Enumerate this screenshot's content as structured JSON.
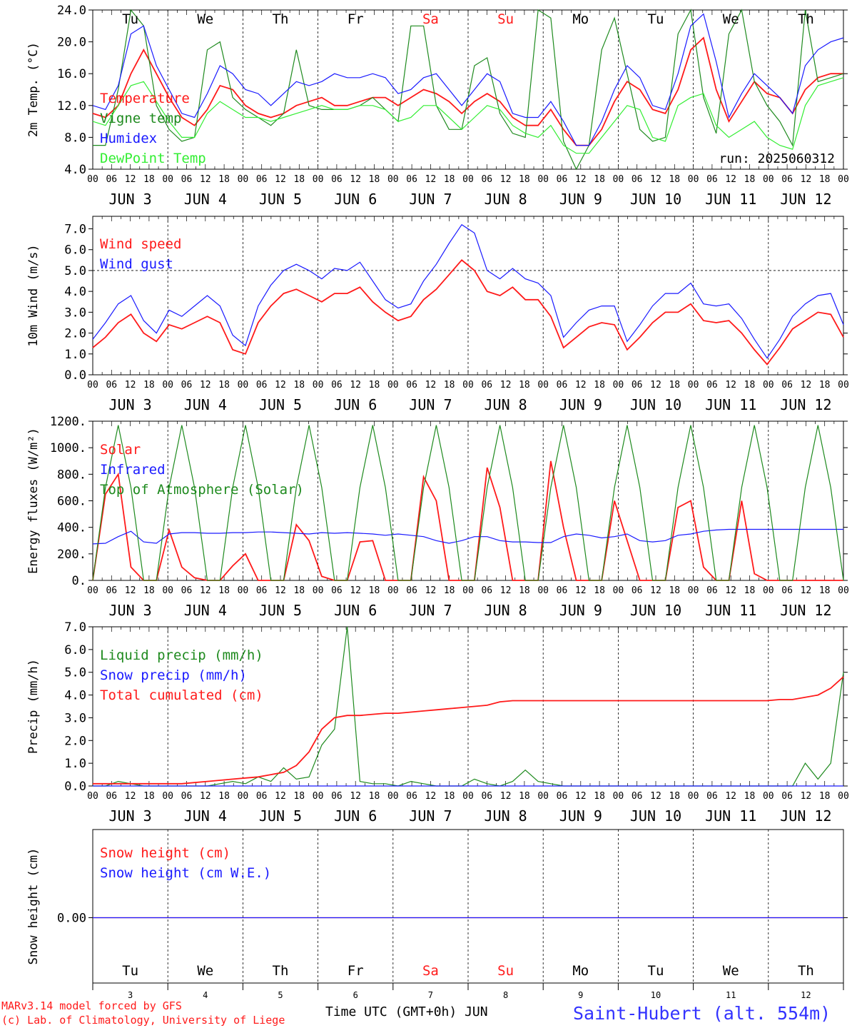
{
  "colors": {
    "red": "#ff1a1a",
    "darkgreen": "#1e8a1e",
    "blue": "#1a1aff",
    "lightgreen": "#33ee33",
    "black": "#000000",
    "footer_blue": "#3333ff"
  },
  "hour_ticks": [
    "00",
    "06",
    "12",
    "18"
  ],
  "date_labels": [
    "JUN  3",
    "JUN  4",
    "JUN  5",
    "JUN  6",
    "JUN  7",
    "JUN  8",
    "JUN  9",
    "JUN 10",
    "JUN 11",
    "JUN 12"
  ],
  "day_names": [
    "Tu",
    "We",
    "Th",
    "Fr",
    "Sa",
    "Su",
    "Mo",
    "Tu",
    "We",
    "Th"
  ],
  "day_colors": [
    "black",
    "black",
    "black",
    "black",
    "red",
    "red",
    "black",
    "black",
    "black",
    "black"
  ],
  "day_numbers": [
    "3",
    "4",
    "5",
    "6",
    "7",
    "8",
    "9",
    "10",
    "11",
    "12"
  ],
  "footer": {
    "model_line1": "MARv3.14 model forced by GFS",
    "model_line2": "(c) Lab. of Climatology, University of Liege",
    "time_axis": "Time UTC (GMT+0h) JUN",
    "station": "Saint-Hubert (alt. 554m)"
  },
  "chart_data": [
    {
      "type": "line",
      "ylabel": "2m Temp. (°C)",
      "ylim": [
        4,
        24
      ],
      "yticks": [
        "4.0",
        "8.0",
        "12.0",
        "16.0",
        "20.0",
        "24.0"
      ],
      "ytick_values": [
        4,
        8,
        12,
        16,
        20,
        24
      ],
      "run_label": "run: 2025060312",
      "legend_placement": "top-left",
      "x_hours_step": 6,
      "series": [
        {
          "name": "Temperature",
          "color": "red",
          "values": [
            11.0,
            10.5,
            12.0,
            16.0,
            19.0,
            16.0,
            13.0,
            10.5,
            9.5,
            11.5,
            14.5,
            14.0,
            12.0,
            11.0,
            10.5,
            11.0,
            12.0,
            12.5,
            13.0,
            12.0,
            12.0,
            12.5,
            13.0,
            13.0,
            12.0,
            13.0,
            14.0,
            13.5,
            12.5,
            11.0,
            12.5,
            13.5,
            12.5,
            10.5,
            9.5,
            9.5,
            11.5,
            9.0,
            7.0,
            7.0,
            9.0,
            12.5,
            15.0,
            14.0,
            11.5,
            11.0,
            14.0,
            19.0,
            20.5,
            14.0,
            10.0,
            12.5,
            15.0,
            13.5,
            13.0,
            11.0,
            14.0,
            15.5,
            16.0,
            16.0
          ]
        },
        {
          "name": "Vigne temp",
          "color": "darkgreen",
          "values": [
            7.0,
            7.0,
            14.0,
            24.0,
            22.0,
            12.0,
            9.0,
            7.5,
            8.0,
            19.0,
            20.0,
            13.0,
            11.5,
            10.5,
            9.5,
            11.0,
            19.0,
            12.0,
            11.5,
            11.5,
            11.5,
            12.0,
            13.0,
            11.5,
            10.0,
            22.0,
            22.0,
            12.0,
            9.0,
            9.0,
            17.0,
            18.0,
            11.0,
            8.5,
            8.0,
            24.0,
            23.0,
            7.5,
            4.0,
            7.0,
            19.0,
            23.0,
            16.0,
            9.0,
            7.5,
            8.0,
            21.0,
            24.0,
            13.0,
            8.5,
            21.0,
            24.0,
            15.0,
            12.0,
            10.0,
            7.0,
            24.0,
            15.0,
            15.5,
            16.0
          ]
        },
        {
          "name": "Humidex",
          "color": "blue",
          "values": [
            12.0,
            11.5,
            14.5,
            21.0,
            22.0,
            17.0,
            14.0,
            11.0,
            10.5,
            13.5,
            17.0,
            16.0,
            14.0,
            13.5,
            12.0,
            13.5,
            15.0,
            14.5,
            15.0,
            16.0,
            15.5,
            15.5,
            16.0,
            15.5,
            13.5,
            14.0,
            15.5,
            16.0,
            14.0,
            12.0,
            14.0,
            16.0,
            15.0,
            11.0,
            10.5,
            10.5,
            12.5,
            10.0,
            7.0,
            7.0,
            10.0,
            14.0,
            17.0,
            15.5,
            12.0,
            11.5,
            16.0,
            22.0,
            23.5,
            17.5,
            10.5,
            13.5,
            16.0,
            14.5,
            13.0,
            11.0,
            17.0,
            19.0,
            20.0,
            20.5
          ]
        },
        {
          "name": "DewPoint Temp",
          "color": "lightgreen",
          "values": [
            10.0,
            9.5,
            12.0,
            14.5,
            15.0,
            12.5,
            10.0,
            8.0,
            8.0,
            11.0,
            12.5,
            11.5,
            10.5,
            10.5,
            10.0,
            10.5,
            11.0,
            11.5,
            12.0,
            11.5,
            11.5,
            12.0,
            12.0,
            11.5,
            10.0,
            10.5,
            12.0,
            12.0,
            10.5,
            9.0,
            10.5,
            12.0,
            11.5,
            9.5,
            8.5,
            8.0,
            9.5,
            7.0,
            6.0,
            6.0,
            8.0,
            10.0,
            12.0,
            11.5,
            8.0,
            7.5,
            12.0,
            13.0,
            13.5,
            9.5,
            8.0,
            9.0,
            10.0,
            8.0,
            7.0,
            6.5,
            12.0,
            14.5,
            15.0,
            15.5
          ]
        }
      ]
    },
    {
      "type": "line",
      "ylabel": "10m Wind (m/s)",
      "ylim": [
        0,
        7.6
      ],
      "yticks": [
        "0.0",
        "1.0",
        "2.0",
        "3.0",
        "4.0",
        "5.0",
        "6.0",
        "7.0"
      ],
      "ytick_values": [
        0,
        1,
        2,
        3,
        4,
        5,
        6,
        7
      ],
      "reference_line": 5.0,
      "legend_placement": "top-left",
      "x_hours_step": 6,
      "series": [
        {
          "name": "Wind speed",
          "color": "red",
          "values": [
            1.3,
            1.8,
            2.5,
            2.9,
            2.0,
            1.6,
            2.4,
            2.2,
            2.5,
            2.8,
            2.5,
            1.2,
            1.0,
            2.5,
            3.3,
            3.9,
            4.1,
            3.8,
            3.5,
            3.9,
            3.9,
            4.2,
            3.5,
            3.0,
            2.6,
            2.8,
            3.6,
            4.1,
            4.8,
            5.5,
            5.0,
            4.0,
            3.8,
            4.2,
            3.6,
            3.6,
            2.8,
            1.3,
            1.8,
            2.3,
            2.5,
            2.4,
            1.2,
            1.8,
            2.5,
            3.0,
            3.0,
            3.4,
            2.6,
            2.5,
            2.6,
            2.0,
            1.2,
            0.5,
            1.3,
            2.2,
            2.6,
            3.0,
            2.9,
            1.8
          ]
        },
        {
          "name": "Wind gust",
          "color": "blue",
          "values": [
            1.7,
            2.5,
            3.4,
            3.8,
            2.6,
            2.0,
            3.1,
            2.8,
            3.3,
            3.8,
            3.3,
            1.9,
            1.4,
            3.3,
            4.3,
            5.0,
            5.3,
            5.0,
            4.6,
            5.1,
            5.0,
            5.4,
            4.5,
            3.6,
            3.2,
            3.4,
            4.5,
            5.3,
            6.3,
            7.2,
            6.8,
            5.0,
            4.6,
            5.1,
            4.6,
            4.4,
            3.8,
            1.8,
            2.5,
            3.1,
            3.3,
            3.3,
            1.6,
            2.4,
            3.3,
            3.9,
            3.9,
            4.4,
            3.4,
            3.3,
            3.4,
            2.7,
            1.7,
            0.8,
            1.7,
            2.8,
            3.4,
            3.8,
            3.9,
            2.4
          ]
        }
      ]
    },
    {
      "type": "line",
      "ylabel": "Energy fluxes (W/m²)",
      "ylim": [
        0,
        1200
      ],
      "yticks": [
        "0.",
        "200.",
        "400.",
        "600.",
        "800.",
        "1000.",
        "1200."
      ],
      "ytick_values": [
        0,
        200,
        400,
        600,
        800,
        1000,
        1200
      ],
      "legend_placement": "top-left",
      "x_hours_step": 6,
      "series": [
        {
          "name": "Solar",
          "color": "red",
          "values": [
            0,
            650,
            800,
            100,
            0,
            0,
            380,
            100,
            20,
            0,
            0,
            110,
            200,
            0,
            0,
            0,
            420,
            300,
            30,
            0,
            0,
            290,
            300,
            0,
            0,
            0,
            780,
            600,
            0,
            0,
            0,
            850,
            550,
            0,
            0,
            0,
            900,
            400,
            0,
            0,
            0,
            600,
            300,
            0,
            0,
            0,
            550,
            600,
            100,
            0,
            0,
            600,
            50,
            0,
            0,
            0,
            0,
            0,
            0,
            0
          ]
        },
        {
          "name": "Infrared",
          "color": "blue",
          "values": [
            275,
            280,
            330,
            370,
            290,
            280,
            350,
            360,
            360,
            355,
            355,
            360,
            360,
            365,
            365,
            360,
            355,
            350,
            360,
            355,
            360,
            355,
            350,
            340,
            350,
            340,
            330,
            300,
            280,
            300,
            330,
            330,
            300,
            290,
            290,
            285,
            285,
            330,
            350,
            340,
            320,
            330,
            350,
            300,
            290,
            300,
            340,
            350,
            370,
            380,
            385,
            385,
            385,
            385,
            385,
            385,
            385,
            385,
            385,
            385
          ]
        },
        {
          "name": "Top of Atmosphere (Solar)",
          "color": "darkgreen",
          "values": [
            0,
            700,
            1170,
            700,
            0,
            0,
            700,
            1170,
            700,
            0,
            0,
            700,
            1170,
            700,
            0,
            0,
            700,
            1170,
            700,
            0,
            0,
            700,
            1170,
            700,
            0,
            0,
            700,
            1170,
            700,
            0,
            0,
            700,
            1170,
            700,
            0,
            0,
            700,
            1170,
            700,
            0,
            0,
            700,
            1170,
            700,
            0,
            0,
            700,
            1170,
            700,
            0,
            0,
            700,
            1170,
            700,
            0,
            0,
            700,
            1170,
            700,
            0
          ]
        }
      ]
    },
    {
      "type": "line",
      "ylabel": "Precip (mm/h)",
      "ylim": [
        0,
        7
      ],
      "yticks": [
        "0.0",
        "1.0",
        "2.0",
        "3.0",
        "4.0",
        "5.0",
        "6.0",
        "7.0"
      ],
      "ytick_values": [
        0,
        1,
        2,
        3,
        4,
        5,
        6,
        7
      ],
      "legend_placement": "top-left",
      "x_hours_step": 6,
      "series": [
        {
          "name": "Liquid precip (mm/h)",
          "color": "darkgreen",
          "values": [
            0,
            0,
            0.2,
            0.1,
            0,
            0,
            0,
            0,
            0,
            0,
            0.1,
            0.2,
            0.1,
            0.4,
            0.2,
            0.8,
            0.3,
            0.4,
            1.8,
            2.5,
            7.0,
            0.2,
            0.1,
            0.1,
            0,
            0.2,
            0.1,
            0,
            0,
            0,
            0.3,
            0.1,
            0,
            0.2,
            0.7,
            0.2,
            0.1,
            0,
            0,
            0,
            0,
            0,
            0,
            0,
            0,
            0,
            0,
            0,
            0,
            0,
            0,
            0,
            0,
            0,
            0,
            0,
            1.0,
            0.3,
            1.0,
            5.0
          ]
        },
        {
          "name": "Snow precip (mm/h)",
          "color": "blue",
          "values": [
            0,
            0,
            0,
            0,
            0,
            0,
            0,
            0,
            0,
            0,
            0,
            0,
            0,
            0,
            0,
            0,
            0,
            0,
            0,
            0,
            0,
            0,
            0,
            0,
            0,
            0,
            0,
            0,
            0,
            0,
            0,
            0,
            0,
            0,
            0,
            0,
            0,
            0,
            0,
            0,
            0,
            0,
            0,
            0,
            0,
            0,
            0,
            0,
            0,
            0,
            0,
            0,
            0,
            0,
            0,
            0,
            0,
            0,
            0,
            0
          ]
        },
        {
          "name": "Total cumulated (cm)",
          "color": "red",
          "values": [
            0.1,
            0.1,
            0.1,
            0.1,
            0.1,
            0.1,
            0.1,
            0.1,
            0.15,
            0.2,
            0.25,
            0.3,
            0.35,
            0.4,
            0.5,
            0.6,
            0.9,
            1.5,
            2.5,
            3.0,
            3.1,
            3.1,
            3.15,
            3.2,
            3.2,
            3.25,
            3.3,
            3.35,
            3.4,
            3.45,
            3.5,
            3.55,
            3.7,
            3.75,
            3.75,
            3.75,
            3.75,
            3.75,
            3.75,
            3.75,
            3.75,
            3.75,
            3.75,
            3.75,
            3.75,
            3.75,
            3.75,
            3.75,
            3.75,
            3.75,
            3.75,
            3.75,
            3.75,
            3.75,
            3.8,
            3.8,
            3.9,
            4.0,
            4.3,
            4.8
          ]
        }
      ]
    },
    {
      "type": "line",
      "ylabel": "Snow height (cm)",
      "yticks": [
        "0.00"
      ],
      "ytick_values": [
        0
      ],
      "legend_placement": "top-left",
      "series": [
        {
          "name": "Snow height (cm)",
          "color": "red",
          "values": [
            0,
            0
          ]
        },
        {
          "name": "Snow height (cm W.E.)",
          "color": "blue",
          "values": [
            0,
            0
          ]
        }
      ]
    }
  ]
}
